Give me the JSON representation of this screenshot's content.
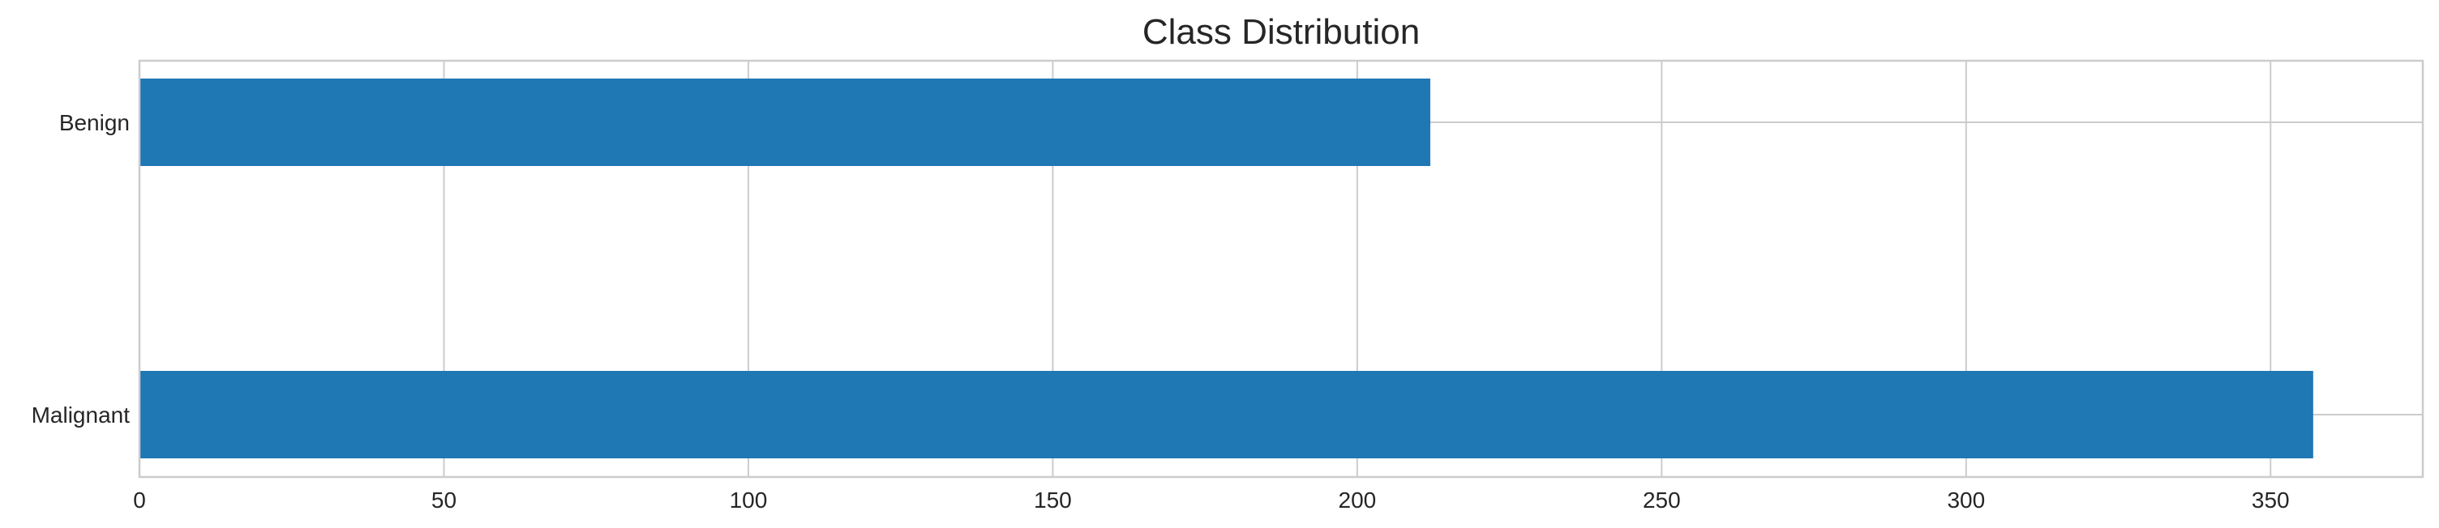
{
  "chart_data": {
    "type": "bar",
    "orientation": "horizontal",
    "title": "Class Distribution",
    "xlabel": "",
    "ylabel": "",
    "categories": [
      "Benign",
      "Malignant"
    ],
    "values": [
      212,
      357
    ],
    "xlim": [
      0,
      375
    ],
    "xticks": [
      0,
      50,
      100,
      150,
      200,
      250,
      300,
      350
    ],
    "xtick_labels": [
      "0",
      "50",
      "100",
      "150",
      "200",
      "250",
      "300",
      "350"
    ],
    "grid": true,
    "legend": "none",
    "bar_color": "#1f77b4"
  }
}
